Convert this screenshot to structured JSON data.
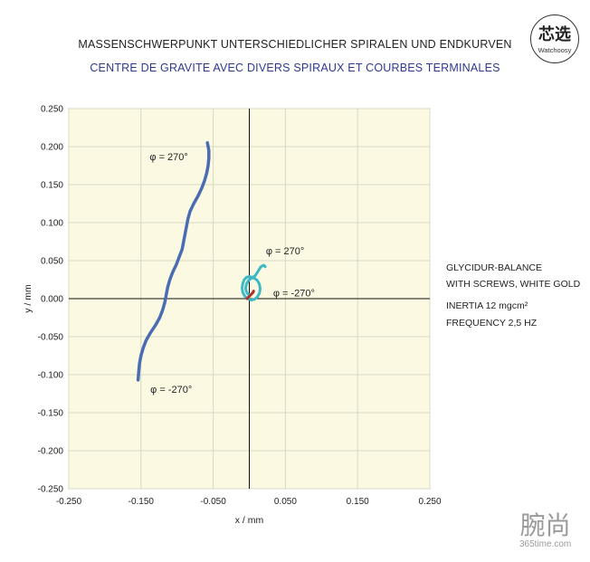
{
  "header": {
    "title_de": "MASSENSCHWERPUNKT UNTERSCHIEDLICHER SPIRALEN UND ENDKURVEN",
    "title_fr": "CENTRE DE GRAVITE AVEC DIVERS SPIRAUX ET COURBES TERMINALES"
  },
  "logo": {
    "text_cn": "芯选",
    "text_en": "Watchoosy"
  },
  "side_notes": {
    "line1": "GLYCIDUR-BALANCE",
    "line2": "WITH SCREWS, WHITE GOLD",
    "line3": "INERTIA 12 mgcm²",
    "line4": "FREQUENCY 2,5 HZ"
  },
  "watermark": {
    "text_cn": "腕尚",
    "text_en": "365time.com"
  },
  "chart_data": {
    "type": "line",
    "xlabel": "x / mm",
    "ylabel": "y / mm",
    "xlim": [
      -0.25,
      0.25
    ],
    "ylim": [
      -0.25,
      0.25
    ],
    "x_ticks": [
      "-0.250",
      "-0.150",
      "-0.050",
      "0.050",
      "0.150",
      "0.250"
    ],
    "y_ticks": [
      "0.250",
      "0.200",
      "0.150",
      "0.100",
      "0.050",
      "0.000",
      "-0.050",
      "-0.100",
      "-0.150",
      "-0.200",
      "-0.250"
    ],
    "background_color": "#fbf9e2",
    "grid_color": "#d9d9c4",
    "grid": true,
    "series": [
      {
        "color": "#4a6cb3",
        "x": [
          -0.058,
          -0.056,
          -0.056,
          -0.057,
          -0.059,
          -0.062,
          -0.066,
          -0.071,
          -0.077,
          -0.082,
          -0.085,
          -0.087,
          -0.089,
          -0.091,
          -0.093,
          -0.097,
          -0.101,
          -0.106,
          -0.11,
          -0.113,
          -0.115,
          -0.117,
          -0.12,
          -0.124,
          -0.13,
          -0.137,
          -0.143,
          -0.147,
          -0.15,
          -0.152,
          -0.153,
          -0.154
        ],
        "y": [
          0.205,
          0.195,
          0.185,
          0.175,
          0.165,
          0.155,
          0.145,
          0.135,
          0.125,
          0.115,
          0.105,
          0.095,
          0.085,
          0.075,
          0.065,
          0.055,
          0.045,
          0.035,
          0.025,
          0.015,
          0.005,
          -0.005,
          -0.015,
          -0.025,
          -0.035,
          -0.045,
          -0.055,
          -0.065,
          -0.075,
          -0.085,
          -0.095,
          -0.107
        ]
      },
      {
        "color": "#3fb8c6",
        "x": [
          0.022,
          0.02,
          0.016,
          0.012,
          0.008,
          0.004,
          0.0,
          -0.004,
          -0.007,
          -0.009,
          -0.01,
          -0.009,
          -0.006,
          -0.002,
          0.002,
          0.007,
          0.011,
          0.014,
          0.015,
          0.014,
          0.011,
          0.007,
          0.003,
          -0.001,
          -0.004,
          -0.005,
          -0.004,
          -0.002,
          0.001
        ],
        "y": [
          0.042,
          0.044,
          0.042,
          0.036,
          0.03,
          0.028,
          0.029,
          0.028,
          0.025,
          0.02,
          0.014,
          0.008,
          0.003,
          0.0,
          -0.002,
          -0.001,
          0.002,
          0.007,
          0.013,
          0.019,
          0.024,
          0.027,
          0.027,
          0.024,
          0.019,
          0.014,
          0.009,
          0.006,
          0.005
        ]
      },
      {
        "color": "#b03030",
        "x": [
          -0.003,
          -0.001,
          0.001,
          0.003,
          0.005,
          0.006
        ],
        "y": [
          0.0,
          0.002,
          0.004,
          0.006,
          0.008,
          0.01
        ]
      }
    ],
    "annotations": [
      {
        "text": "φ = 270°",
        "x": -0.138,
        "y": 0.187
      },
      {
        "text": "φ = 270°",
        "x": 0.023,
        "y": 0.063
      },
      {
        "text": "φ = -270°",
        "x": 0.033,
        "y": 0.008
      },
      {
        "text": "φ = -270°",
        "x": -0.137,
        "y": -0.119
      }
    ]
  }
}
